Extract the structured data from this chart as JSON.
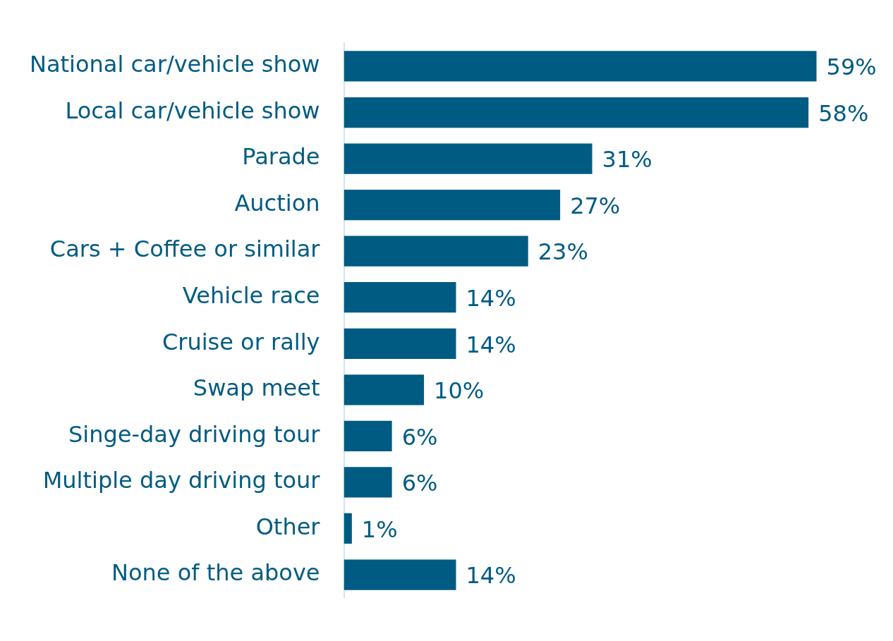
{
  "chart_data": {
    "type": "bar",
    "orientation": "horizontal",
    "categories": [
      "National car/vehicle show",
      "Local car/vehicle show",
      "Parade",
      "Auction",
      "Cars + Coffee or similar",
      "Vehicle race",
      "Cruise or rally",
      "Swap meet",
      "Singe-day driving tour",
      "Multiple day driving tour",
      "Other",
      "None of the above"
    ],
    "values": [
      59,
      58,
      31,
      27,
      23,
      14,
      14,
      10,
      6,
      6,
      1,
      14
    ],
    "value_labels": [
      "59%",
      "58%",
      "31%",
      "27%",
      "23%",
      "14%",
      "14%",
      "10%",
      "6%",
      "6%",
      "1%",
      "14%"
    ],
    "color": "#005b82",
    "grid": false,
    "legend": false
  }
}
